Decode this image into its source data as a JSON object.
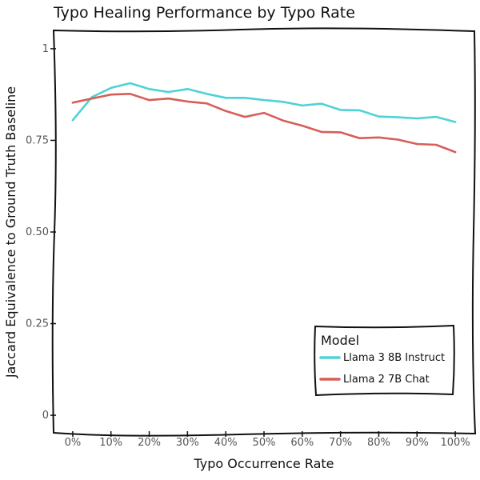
{
  "chart_data": {
    "type": "line",
    "title": "Typo Healing Performance by Typo Rate",
    "xlabel": "Typo Occurrence Rate",
    "ylabel": "Jaccard Equivalence to Ground Truth Baseline",
    "x": [
      0,
      5,
      10,
      15,
      20,
      25,
      30,
      35,
      40,
      45,
      50,
      55,
      60,
      65,
      70,
      75,
      80,
      85,
      90,
      95,
      100
    ],
    "x_tick_values": [
      0,
      10,
      20,
      30,
      40,
      50,
      60,
      70,
      80,
      90,
      100
    ],
    "x_tick_labels": [
      "0%",
      "10%",
      "20%",
      "30%",
      "40%",
      "50%",
      "60%",
      "70%",
      "80%",
      "90%",
      "100%"
    ],
    "xlim": [
      -5,
      105
    ],
    "y_tick_values": [
      0,
      0.25,
      0.5,
      0.75,
      1
    ],
    "y_tick_labels": [
      "0",
      "0.25",
      "0.50",
      "0.75",
      "1"
    ],
    "ylim": [
      -0.05,
      1.05
    ],
    "grid": false,
    "legend": {
      "title": "Model",
      "placement": "bottom-right"
    },
    "series": [
      {
        "name": "Llama 3 8B Instruct",
        "color": "#4fd2d6",
        "values": [
          0.805,
          0.868,
          0.893,
          0.906,
          0.89,
          0.882,
          0.89,
          0.877,
          0.866,
          0.866,
          0.86,
          0.855,
          0.845,
          0.85,
          0.833,
          0.832,
          0.815,
          0.813,
          0.81,
          0.814,
          0.8
        ]
      },
      {
        "name": "Llama 2 7B Chat",
        "color": "#d65f57",
        "values": [
          0.853,
          0.864,
          0.875,
          0.877,
          0.86,
          0.864,
          0.856,
          0.851,
          0.83,
          0.814,
          0.825,
          0.804,
          0.79,
          0.773,
          0.772,
          0.756,
          0.758,
          0.752,
          0.74,
          0.738,
          0.718
        ]
      }
    ]
  }
}
